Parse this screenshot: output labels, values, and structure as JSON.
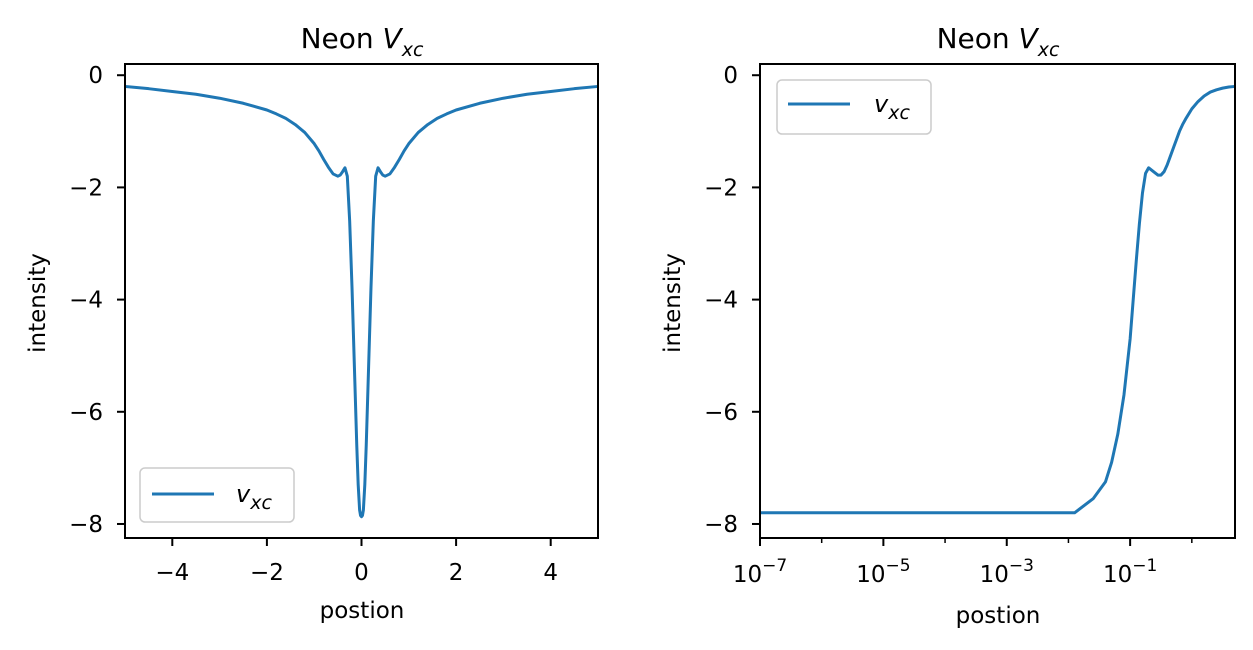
{
  "colors": {
    "series": "#1f77b4",
    "axes": "#000000",
    "background": "#ffffff",
    "legend_border": "#cccccc"
  },
  "chart_data": [
    {
      "type": "line",
      "title_prefix": "Neon ",
      "title_sym": "V",
      "title_sub": "xc",
      "xlabel": "postion",
      "ylabel": "intensity",
      "xscale": "linear",
      "xlim": [
        -5,
        5
      ],
      "ylim": [
        -8.25,
        0.2
      ],
      "xticks": [
        -4,
        -2,
        0,
        2,
        4
      ],
      "xtick_labels": [
        "−4",
        "−2",
        "0",
        "2",
        "4"
      ],
      "yticks": [
        0,
        -2,
        -4,
        -6,
        -8
      ],
      "ytick_labels": [
        "0",
        "−2",
        "−4",
        "−6",
        "−8"
      ],
      "legend": {
        "sym": "v",
        "sub": "xc",
        "location": "lower-left"
      },
      "series": [
        {
          "name": "v_xc",
          "x": [
            -5,
            -4.5,
            -4,
            -3.5,
            -3,
            -2.5,
            -2,
            -1.8,
            -1.6,
            -1.4,
            -1.2,
            -1.0,
            -0.9,
            -0.8,
            -0.7,
            -0.6,
            -0.5,
            -0.45,
            -0.4,
            -0.35,
            -0.3,
            -0.25,
            -0.2,
            -0.15,
            -0.1,
            -0.07,
            -0.04,
            -0.02,
            0,
            0.02,
            0.04,
            0.07,
            0.1,
            0.15,
            0.2,
            0.25,
            0.3,
            0.35,
            0.4,
            0.45,
            0.5,
            0.6,
            0.7,
            0.8,
            0.9,
            1.0,
            1.2,
            1.4,
            1.6,
            1.8,
            2,
            2.5,
            3,
            3.5,
            4,
            4.5,
            5
          ],
          "y": [
            -0.2,
            -0.24,
            -0.29,
            -0.34,
            -0.41,
            -0.5,
            -0.62,
            -0.69,
            -0.77,
            -0.88,
            -1.02,
            -1.22,
            -1.35,
            -1.5,
            -1.64,
            -1.76,
            -1.8,
            -1.78,
            -1.72,
            -1.65,
            -1.8,
            -2.6,
            -3.8,
            -5.2,
            -6.6,
            -7.3,
            -7.75,
            -7.85,
            -7.87,
            -7.85,
            -7.75,
            -7.3,
            -6.6,
            -5.2,
            -3.8,
            -2.6,
            -1.8,
            -1.65,
            -1.72,
            -1.78,
            -1.8,
            -1.76,
            -1.64,
            -1.5,
            -1.35,
            -1.22,
            -1.02,
            -0.88,
            -0.77,
            -0.69,
            -0.62,
            -0.5,
            -0.41,
            -0.34,
            -0.29,
            -0.24,
            -0.2
          ]
        }
      ]
    },
    {
      "type": "line",
      "title_prefix": "Neon ",
      "title_sym": "V",
      "title_sub": "xc",
      "xlabel": "postion",
      "ylabel": "intensity",
      "xscale": "log",
      "xlim_log10": [
        -7,
        0.7
      ],
      "ylim": [
        -8.25,
        0.2
      ],
      "xticks_exp": [
        -7,
        -5,
        -3,
        -1
      ],
      "xtick_labels": [
        {
          "base": "10",
          "exp": "−7"
        },
        {
          "base": "10",
          "exp": "−5"
        },
        {
          "base": "10",
          "exp": "−3"
        },
        {
          "base": "10",
          "exp": "−1"
        }
      ],
      "yticks": [
        0,
        -2,
        -4,
        -6,
        -8
      ],
      "ytick_labels": [
        "0",
        "−2",
        "−4",
        "−6",
        "−8"
      ],
      "legend": {
        "sym": "v",
        "sub": "xc",
        "location": "upper-left"
      },
      "series": [
        {
          "name": "v_xc",
          "x_log10": [
            -7,
            -6,
            -5,
            -4,
            -3,
            -2,
            -1.9,
            -1.6,
            -1.4,
            -1.3,
            -1.2,
            -1.1,
            -1.0,
            -0.95,
            -0.9,
            -0.85,
            -0.8,
            -0.75,
            -0.7,
            -0.62,
            -0.55,
            -0.5,
            -0.45,
            -0.4,
            -0.35,
            -0.3,
            -0.25,
            -0.2,
            -0.15,
            -0.1,
            0,
            0.1,
            0.2,
            0.3,
            0.4,
            0.5,
            0.6,
            0.7
          ],
          "y": [
            -7.8,
            -7.8,
            -7.8,
            -7.8,
            -7.8,
            -7.8,
            -7.8,
            -7.55,
            -7.25,
            -6.9,
            -6.4,
            -5.7,
            -4.7,
            -4.0,
            -3.3,
            -2.65,
            -2.1,
            -1.75,
            -1.65,
            -1.72,
            -1.78,
            -1.78,
            -1.72,
            -1.6,
            -1.45,
            -1.3,
            -1.15,
            -1.0,
            -0.88,
            -0.78,
            -0.6,
            -0.47,
            -0.37,
            -0.3,
            -0.26,
            -0.23,
            -0.21,
            -0.2
          ]
        }
      ]
    }
  ]
}
